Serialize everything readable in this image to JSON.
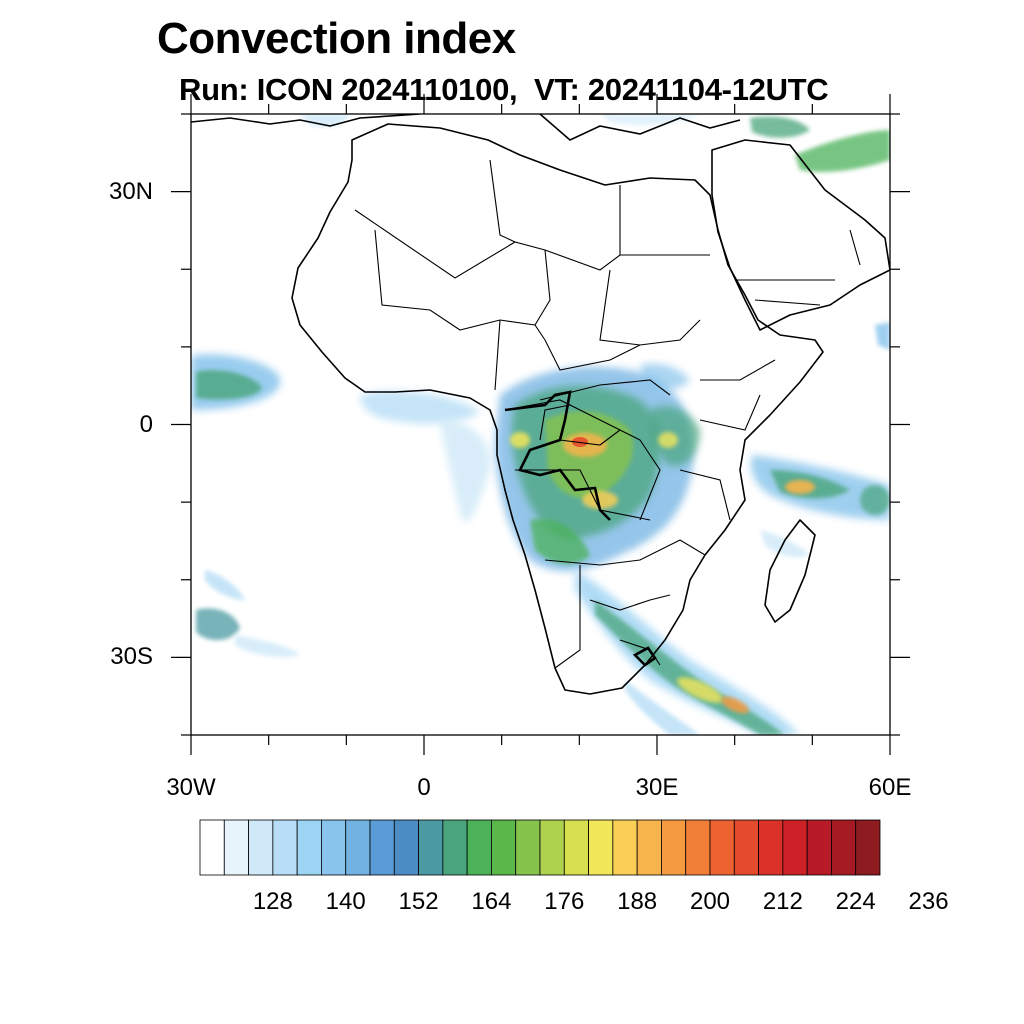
{
  "title": "Convection index",
  "subtitle": "Run: ICON 2024110100,  VT: 20241104-12UTC",
  "map": {
    "lon_range": [
      -30,
      60
    ],
    "lat_range": [
      -40,
      40
    ],
    "lat_labels": [
      {
        "lat": 30,
        "text": "30N"
      },
      {
        "lat": 0,
        "text": "0"
      },
      {
        "lat": -30,
        "text": "30S"
      }
    ],
    "lon_labels": [
      {
        "lon": -30,
        "text": "30W"
      },
      {
        "lon": 0,
        "text": "0"
      },
      {
        "lon": 30,
        "text": "30E"
      },
      {
        "lon": 60,
        "text": "60E"
      }
    ]
  },
  "colorbar": {
    "colors": [
      "#ffffff",
      "#e8f4fb",
      "#cfe9f8",
      "#b7def6",
      "#9dd3f3",
      "#88c4ec",
      "#72b2e3",
      "#5a9cd5",
      "#4b8cc4",
      "#4b9aa3",
      "#4aa57c",
      "#4cb25a",
      "#5ab84a",
      "#86c34d",
      "#aed24d",
      "#d8e04f",
      "#f2e65a",
      "#f9cf55",
      "#f8b44c",
      "#f69a41",
      "#f17f38",
      "#ec6231",
      "#e44a2c",
      "#da3228",
      "#cc2127",
      "#b81b27",
      "#a61a24",
      "#8e1b20"
    ],
    "labels": [
      "128",
      "140",
      "152",
      "164",
      "176",
      "188",
      "200",
      "212",
      "224",
      "236"
    ]
  }
}
